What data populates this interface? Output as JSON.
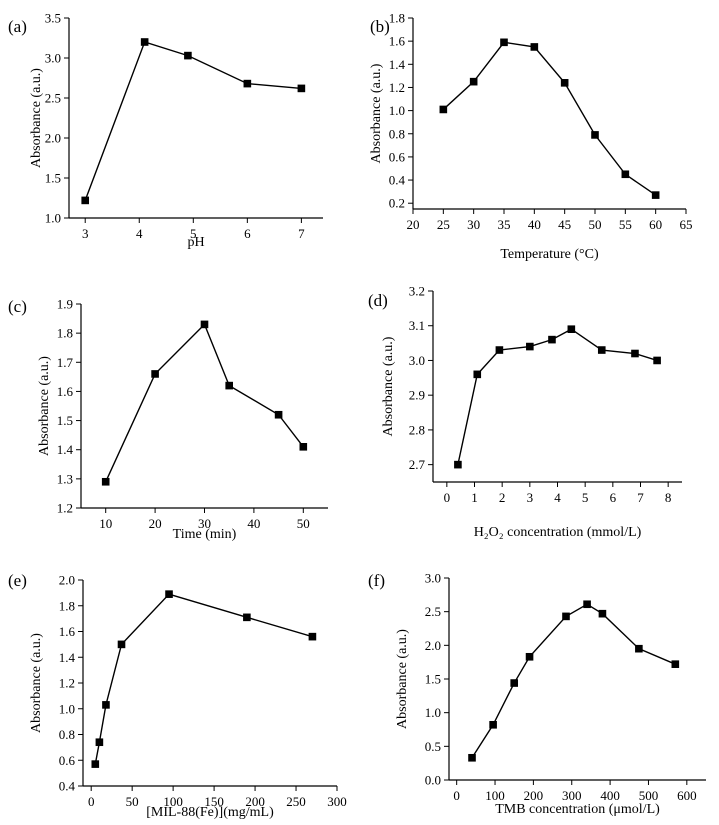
{
  "figure": {
    "panels": [
      "a",
      "b",
      "c",
      "d",
      "e",
      "f"
    ]
  },
  "chart_data": [
    {
      "id": "a",
      "type": "line",
      "panel_label": "(a)",
      "xlabel": "pH",
      "ylabel": "Absorbance (a.u.)",
      "xlim": [
        2.7,
        7.4
      ],
      "ylim": [
        1.0,
        3.5
      ],
      "xticks": [
        3,
        4,
        5,
        6,
        7
      ],
      "xtick_labels": [
        "3",
        "4",
        "5",
        "6",
        "7"
      ],
      "yticks": [
        1.0,
        1.5,
        2.0,
        2.5,
        3.0,
        3.5
      ],
      "ytick_labels": [
        "1.0",
        "1.5",
        "2.0",
        "2.5",
        "3.0",
        "3.5"
      ],
      "x": [
        3,
        4.1,
        4.9,
        6,
        7
      ],
      "y": [
        1.22,
        3.2,
        3.03,
        2.68,
        2.62
      ]
    },
    {
      "id": "b",
      "type": "line",
      "panel_label": "(b)",
      "xlabel": "Temperature (°C)",
      "ylabel": "Absorbance (a.u.)",
      "xlim": [
        20,
        65
      ],
      "ylim": [
        0.15,
        1.8
      ],
      "xticks": [
        20,
        25,
        30,
        35,
        40,
        45,
        50,
        55,
        60,
        65
      ],
      "xtick_labels": [
        "20",
        "25",
        "30",
        "35",
        "40",
        "45",
        "50",
        "55",
        "60",
        "65"
      ],
      "yticks": [
        0.2,
        0.4,
        0.6,
        0.8,
        1.0,
        1.2,
        1.4,
        1.6,
        1.8
      ],
      "ytick_labels": [
        "0.2",
        "0.4",
        "0.6",
        "0.8",
        "1.0",
        "1.2",
        "1.4",
        "1.6",
        "1.8"
      ],
      "x": [
        25,
        30,
        35,
        40,
        45,
        50,
        55,
        60
      ],
      "y": [
        1.01,
        1.25,
        1.59,
        1.55,
        1.24,
        0.79,
        0.45,
        0.27
      ]
    },
    {
      "id": "c",
      "type": "line",
      "panel_label": "(c)",
      "xlabel": "Time (min)",
      "ylabel": "Absorbance (a.u.)",
      "xlim": [
        5,
        55
      ],
      "ylim": [
        1.2,
        1.9
      ],
      "xticks": [
        10,
        20,
        30,
        40,
        50
      ],
      "xtick_labels": [
        "10",
        "20",
        "30",
        "40",
        "50"
      ],
      "yticks": [
        1.2,
        1.3,
        1.4,
        1.5,
        1.6,
        1.7,
        1.8,
        1.9
      ],
      "ytick_labels": [
        "1.2",
        "1.3",
        "1.4",
        "1.5",
        "1.6",
        "1.7",
        "1.8",
        "1.9"
      ],
      "x": [
        10,
        20,
        30,
        35,
        45,
        50
      ],
      "y": [
        1.29,
        1.66,
        1.83,
        1.62,
        1.52,
        1.41
      ]
    },
    {
      "id": "d",
      "type": "line",
      "panel_label": "(d)",
      "xlabel": "H₂O₂ concentration (mmol/L)",
      "ylabel": "Absorbance (a.u.)",
      "xlim": [
        -0.5,
        8.5
      ],
      "ylim": [
        2.65,
        3.2
      ],
      "xticks": [
        0,
        1,
        2,
        3,
        4,
        5,
        6,
        7,
        8
      ],
      "xtick_labels": [
        "0",
        "1",
        "2",
        "3",
        "4",
        "5",
        "6",
        "7",
        "8"
      ],
      "yticks": [
        2.7,
        2.8,
        2.9,
        3.0,
        3.1,
        3.2
      ],
      "ytick_labels": [
        "2.7",
        "2.8",
        "2.9",
        "3.0",
        "3.1",
        "3.2"
      ],
      "x": [
        0.4,
        1.1,
        1.9,
        3.0,
        3.8,
        4.5,
        5.6,
        6.8,
        7.6
      ],
      "y": [
        2.7,
        2.96,
        3.03,
        3.04,
        3.06,
        3.09,
        3.03,
        3.02,
        3.0
      ]
    },
    {
      "id": "e",
      "type": "line",
      "panel_label": "(e)",
      "xlabel": "[MIL-88(Fe)](mg/mL)",
      "ylabel": "Absorbance (a.u.)",
      "xlim": [
        -10,
        300
      ],
      "ylim": [
        0.4,
        2.0
      ],
      "xticks": [
        0,
        50,
        100,
        150,
        200,
        250,
        300
      ],
      "xtick_labels": [
        "0",
        "50",
        "100",
        "150",
        "200",
        "250",
        "300"
      ],
      "yticks": [
        0.4,
        0.6,
        0.8,
        1.0,
        1.2,
        1.4,
        1.6,
        1.8,
        2.0
      ],
      "ytick_labels": [
        "0.4",
        "0.6",
        "0.8",
        "1.0",
        "1.2",
        "1.4",
        "1.6",
        "1.8",
        "2.0"
      ],
      "x": [
        5,
        10,
        18,
        37,
        95,
        190,
        270
      ],
      "y": [
        0.57,
        0.74,
        1.03,
        1.5,
        1.89,
        1.71,
        1.56
      ]
    },
    {
      "id": "f",
      "type": "line",
      "panel_label": "(f)",
      "xlabel": "TMB concentration (μmol/L)",
      "ylabel": "Absorbance (a.u.)",
      "xlim": [
        -20,
        650
      ],
      "ylim": [
        0.0,
        3.0
      ],
      "xticks": [
        0,
        100,
        200,
        300,
        400,
        500,
        600
      ],
      "xtick_labels": [
        "0",
        "100",
        "200",
        "300",
        "400",
        "500",
        "600"
      ],
      "yticks": [
        0.0,
        0.5,
        1.0,
        1.5,
        2.0,
        2.5,
        3.0
      ],
      "ytick_labels": [
        "0.0",
        "0.5",
        "1.0",
        "1.5",
        "2.0",
        "2.5",
        "3.0"
      ],
      "x": [
        40,
        95,
        150,
        190,
        285,
        340,
        380,
        475,
        570
      ],
      "y": [
        0.33,
        0.82,
        1.44,
        1.83,
        2.43,
        2.61,
        2.47,
        1.95,
        1.72
      ]
    }
  ]
}
